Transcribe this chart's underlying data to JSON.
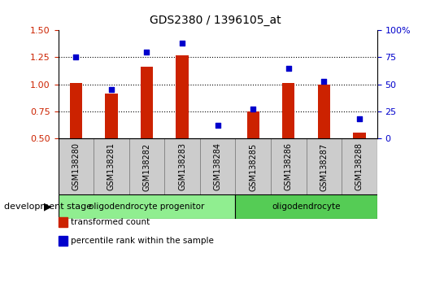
{
  "title": "GDS2380 / 1396105_at",
  "samples": [
    "GSM138280",
    "GSM138281",
    "GSM138282",
    "GSM138283",
    "GSM138284",
    "GSM138285",
    "GSM138286",
    "GSM138287",
    "GSM138288"
  ],
  "bar_values": [
    1.01,
    0.91,
    1.16,
    1.27,
    0.5,
    0.75,
    1.01,
    1.0,
    0.55
  ],
  "scatter_values": [
    75,
    45,
    80,
    88,
    12,
    27,
    65,
    53,
    18
  ],
  "bar_color": "#cc2200",
  "scatter_color": "#0000cc",
  "ylim_left": [
    0.5,
    1.5
  ],
  "ylim_right": [
    0,
    100
  ],
  "yticks_left": [
    0.5,
    0.75,
    1.0,
    1.25,
    1.5
  ],
  "yticks_right": [
    0,
    25,
    50,
    75,
    100
  ],
  "ytick_labels_right": [
    "0",
    "25",
    "50",
    "75",
    "100%"
  ],
  "groups": [
    {
      "label": "oligodendrocyte progenitor",
      "start": 0,
      "end": 4,
      "color": "#90ee90"
    },
    {
      "label": "oligodendrocyte",
      "start": 5,
      "end": 8,
      "color": "#55cc55"
    }
  ],
  "group_label_prefix": "development stage",
  "legend_items": [
    {
      "label": "transformed count",
      "color": "#cc2200"
    },
    {
      "label": "percentile rank within the sample",
      "color": "#0000cc"
    }
  ],
  "tick_label_color_left": "#cc2200",
  "tick_label_color_right": "#0000cc",
  "bar_bottom": 0.5,
  "xtick_bg_color": "#cccccc",
  "xtick_border_color": "#888888"
}
